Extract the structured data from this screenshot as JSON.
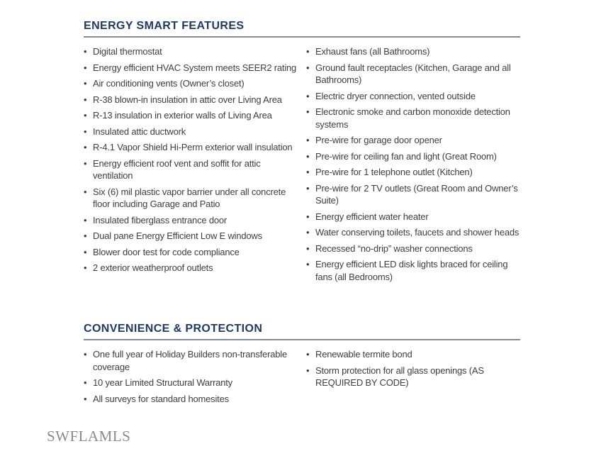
{
  "bullet_glyph": "•",
  "watermark": "SWFLAMLS",
  "colors": {
    "heading": "#203a66",
    "rule": "#848b97",
    "body_text": "#3e3e3e",
    "watermark_text": "#8a8a8a",
    "background": "#ffffff"
  },
  "sections": [
    {
      "title": "ENERGY SMART FEATURES",
      "left_items": [
        "Digital thermostat",
        "Energy efficient HVAC System meets SEER2 rating",
        "Air conditioning vents (Owner’s closet)",
        "R-38 blown-in insulation in attic over Living Area",
        "R-13 insulation in exterior walls of Living Area",
        "Insulated attic ductwork",
        "R-4.1 Vapor Shield Hi-Perm exterior wall insulation",
        "Energy efficient roof vent and soffit for attic ventilation",
        "Six (6) mil plastic vapor barrier under all concrete floor including Garage and Patio",
        "Insulated fiberglass entrance door",
        "Dual pane Energy Efficient Low E windows",
        "Blower door test for code compliance",
        "2 exterior weatherproof outlets"
      ],
      "right_items": [
        "Exhaust fans (all Bathrooms)",
        "Ground fault receptacles (Kitchen, Garage and all Bathrooms)",
        "Electric dryer connection, vented outside",
        "Electronic smoke and carbon monoxide detection systems",
        "Pre-wire for garage door opener",
        "Pre-wire for ceiling fan and light (Great Room)",
        "Pre-wire for 1 telephone outlet (Kitchen)",
        "Pre-wire for 2 TV outlets (Great Room and Owner’s Suite)",
        "Energy efficient water heater",
        "Water conserving toilets, faucets and shower heads",
        "Recessed “no-drip” washer connections",
        "Energy efficient LED disk lights braced for ceiling fans (all Bedrooms)"
      ]
    },
    {
      "title": "CONVENIENCE & PROTECTION",
      "left_items": [
        "One full year of Holiday Builders non-transferable coverage",
        "10 year Limited Structural Warranty",
        "All surveys for standard homesites"
      ],
      "right_items": [
        "Renewable termite bond",
        "Storm protection for all glass openings (AS REQUIRED BY CODE)"
      ]
    }
  ]
}
